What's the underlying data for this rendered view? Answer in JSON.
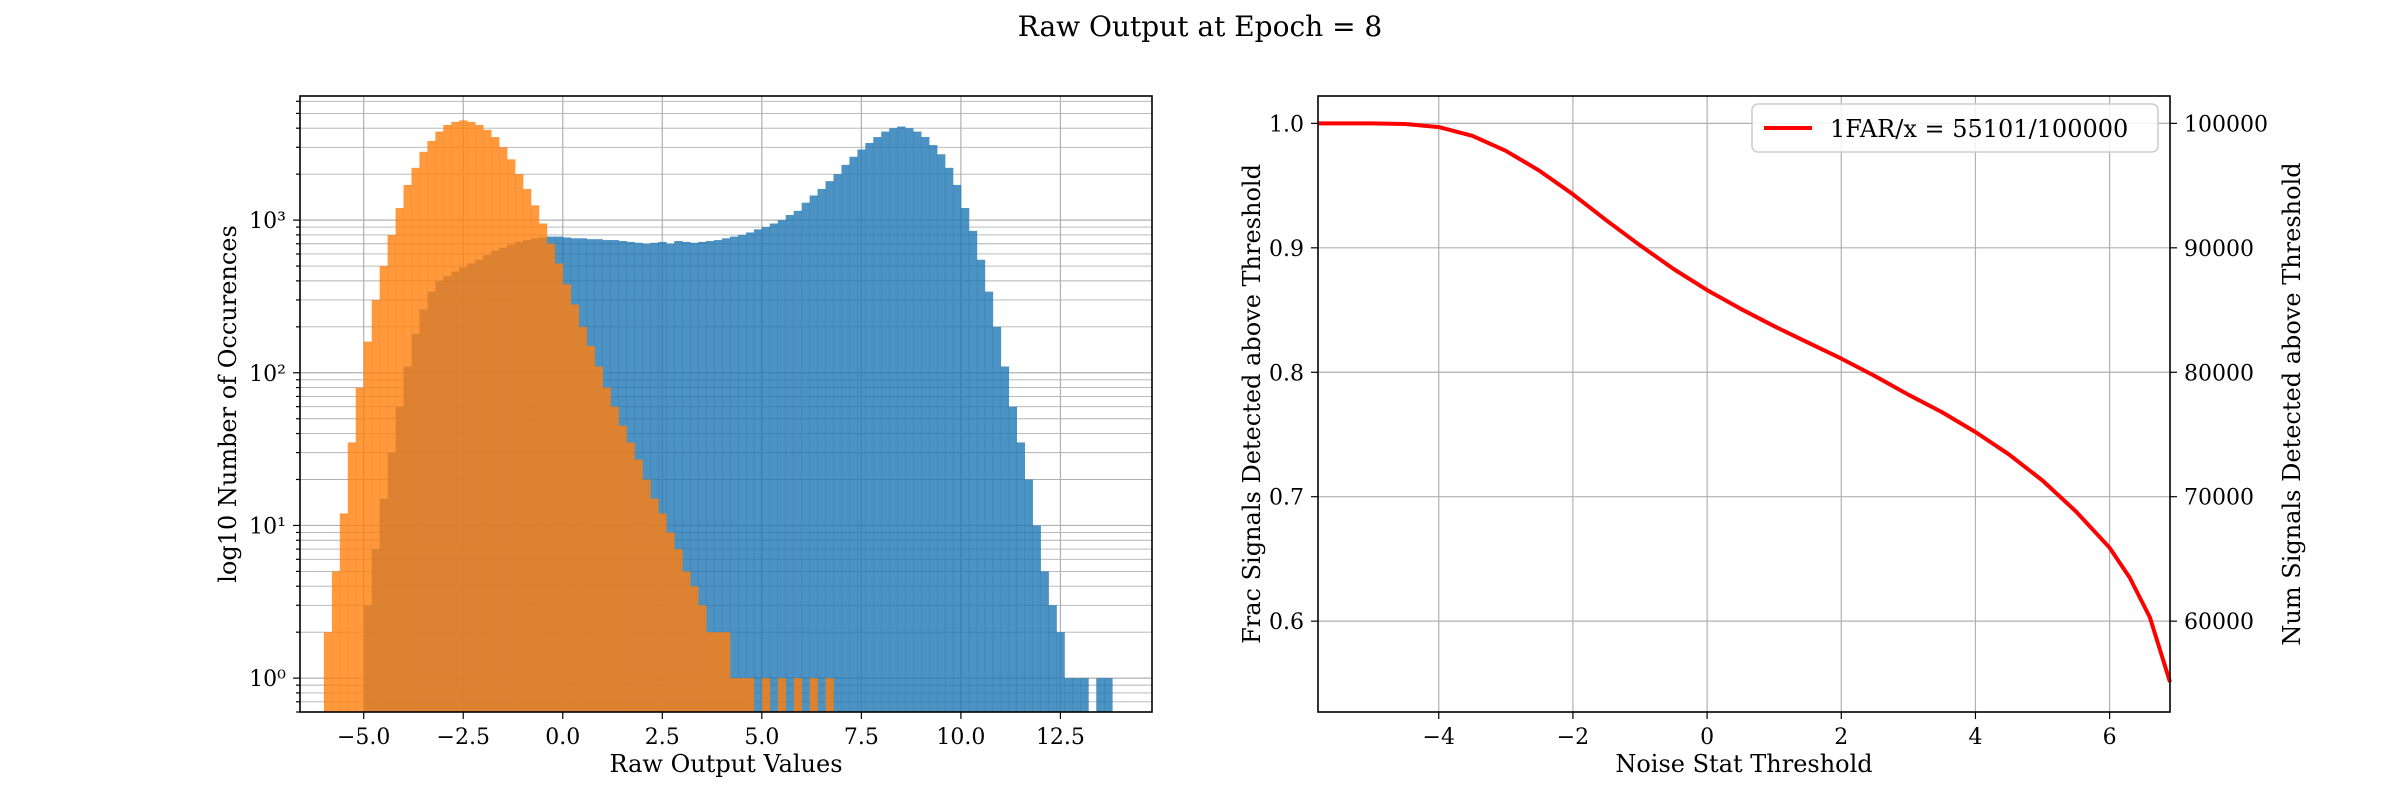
{
  "figure": {
    "suptitle": "Raw Output at Epoch = 8"
  },
  "colors": {
    "blue": "#1f77b4",
    "orange": "#ff7f0e",
    "red": "#ff0000",
    "grid": "#b0b0b0"
  },
  "chart_data": [
    {
      "type": "histogram",
      "title": "",
      "xlabel": "Raw Output Values",
      "ylabel": "log10 Number of Occurences",
      "yscale": "log",
      "xlim": [
        -6.6,
        14.8
      ],
      "ylim": [
        0.6,
        6500
      ],
      "grid": true,
      "bin_width": 0.2,
      "x_ticks": [
        -5.0,
        -2.5,
        0.0,
        2.5,
        5.0,
        7.5,
        10.0,
        12.5
      ],
      "x_tick_labels": [
        "−5.0",
        "−2.5",
        "0.0",
        "2.5",
        "5.0",
        "7.5",
        "10.0",
        "12.5"
      ],
      "y_ticks": [
        1,
        10,
        100,
        1000
      ],
      "y_tick_labels": [
        "10⁰",
        "10¹",
        "10²",
        "10³"
      ],
      "series": [
        {
          "color": "#1f77b4",
          "alpha": 0.8,
          "bins": [
            [
              -5.0,
              3
            ],
            [
              -4.8,
              7
            ],
            [
              -4.6,
              15
            ],
            [
              -4.4,
              30
            ],
            [
              -4.2,
              60
            ],
            [
              -4.0,
              110
            ],
            [
              -3.8,
              180
            ],
            [
              -3.6,
              260
            ],
            [
              -3.4,
              340
            ],
            [
              -3.2,
              400
            ],
            [
              -3.0,
              430
            ],
            [
              -2.8,
              460
            ],
            [
              -2.6,
              490
            ],
            [
              -2.4,
              520
            ],
            [
              -2.2,
              550
            ],
            [
              -2.0,
              590
            ],
            [
              -1.8,
              630
            ],
            [
              -1.6,
              660
            ],
            [
              -1.4,
              690
            ],
            [
              -1.2,
              720
            ],
            [
              -1.0,
              740
            ],
            [
              -0.8,
              760
            ],
            [
              -0.6,
              770
            ],
            [
              -0.4,
              780
            ],
            [
              -0.2,
              780
            ],
            [
              0.0,
              770
            ],
            [
              0.2,
              760
            ],
            [
              0.4,
              760
            ],
            [
              0.6,
              750
            ],
            [
              0.8,
              750
            ],
            [
              1.0,
              740
            ],
            [
              1.2,
              740
            ],
            [
              1.4,
              730
            ],
            [
              1.6,
              720
            ],
            [
              1.8,
              710
            ],
            [
              2.0,
              700
            ],
            [
              2.2,
              710
            ],
            [
              2.4,
              720
            ],
            [
              2.6,
              700
            ],
            [
              2.8,
              730
            ],
            [
              3.0,
              720
            ],
            [
              3.2,
              710
            ],
            [
              3.4,
              720
            ],
            [
              3.6,
              730
            ],
            [
              3.8,
              740
            ],
            [
              4.0,
              760
            ],
            [
              4.2,
              780
            ],
            [
              4.4,
              800
            ],
            [
              4.6,
              830
            ],
            [
              4.8,
              870
            ],
            [
              5.0,
              900
            ],
            [
              5.2,
              950
            ],
            [
              5.4,
              1000
            ],
            [
              5.6,
              1080
            ],
            [
              5.8,
              1150
            ],
            [
              6.0,
              1300
            ],
            [
              6.2,
              1450
            ],
            [
              6.4,
              1600
            ],
            [
              6.6,
              1800
            ],
            [
              6.8,
              2000
            ],
            [
              7.0,
              2300
            ],
            [
              7.2,
              2600
            ],
            [
              7.4,
              2900
            ],
            [
              7.6,
              3200
            ],
            [
              7.8,
              3500
            ],
            [
              8.0,
              3800
            ],
            [
              8.2,
              4000
            ],
            [
              8.4,
              4100
            ],
            [
              8.6,
              4000
            ],
            [
              8.8,
              3800
            ],
            [
              9.0,
              3500
            ],
            [
              9.2,
              3100
            ],
            [
              9.4,
              2700
            ],
            [
              9.6,
              2200
            ],
            [
              9.8,
              1700
            ],
            [
              10.0,
              1200
            ],
            [
              10.2,
              850
            ],
            [
              10.4,
              550
            ],
            [
              10.6,
              340
            ],
            [
              10.8,
              200
            ],
            [
              11.0,
              110
            ],
            [
              11.2,
              60
            ],
            [
              11.4,
              35
            ],
            [
              11.6,
              20
            ],
            [
              11.8,
              10
            ],
            [
              12.0,
              5
            ],
            [
              12.2,
              3
            ],
            [
              12.4,
              2
            ],
            [
              12.6,
              1
            ],
            [
              12.8,
              1
            ],
            [
              13.0,
              1
            ],
            [
              13.4,
              1
            ],
            [
              13.6,
              1
            ]
          ]
        },
        {
          "color": "#ff7f0e",
          "alpha": 0.8,
          "bins": [
            [
              -6.0,
              2
            ],
            [
              -5.8,
              5
            ],
            [
              -5.6,
              12
            ],
            [
              -5.4,
              35
            ],
            [
              -5.2,
              80
            ],
            [
              -5.0,
              160
            ],
            [
              -4.8,
              300
            ],
            [
              -4.6,
              500
            ],
            [
              -4.4,
              800
            ],
            [
              -4.2,
              1200
            ],
            [
              -4.0,
              1700
            ],
            [
              -3.8,
              2200
            ],
            [
              -3.6,
              2800
            ],
            [
              -3.4,
              3300
            ],
            [
              -3.2,
              3800
            ],
            [
              -3.0,
              4200
            ],
            [
              -2.8,
              4400
            ],
            [
              -2.6,
              4500
            ],
            [
              -2.4,
              4400
            ],
            [
              -2.2,
              4200
            ],
            [
              -2.0,
              3900
            ],
            [
              -1.8,
              3500
            ],
            [
              -1.6,
              3000
            ],
            [
              -1.4,
              2500
            ],
            [
              -1.2,
              2000
            ],
            [
              -1.0,
              1600
            ],
            [
              -0.8,
              1250
            ],
            [
              -0.6,
              950
            ],
            [
              -0.4,
              700
            ],
            [
              -0.2,
              520
            ],
            [
              0.0,
              380
            ],
            [
              0.2,
              280
            ],
            [
              0.4,
              200
            ],
            [
              0.6,
              150
            ],
            [
              0.8,
              110
            ],
            [
              1.0,
              80
            ],
            [
              1.2,
              60
            ],
            [
              1.4,
              45
            ],
            [
              1.6,
              35
            ],
            [
              1.8,
              27
            ],
            [
              2.0,
              20
            ],
            [
              2.2,
              15
            ],
            [
              2.4,
              12
            ],
            [
              2.6,
              9
            ],
            [
              2.8,
              7
            ],
            [
              3.0,
              5
            ],
            [
              3.2,
              4
            ],
            [
              3.4,
              3
            ],
            [
              3.6,
              2
            ],
            [
              3.8,
              2
            ],
            [
              4.0,
              2
            ],
            [
              4.2,
              1
            ],
            [
              4.4,
              1
            ],
            [
              4.6,
              1
            ],
            [
              5.0,
              1
            ],
            [
              5.4,
              1
            ],
            [
              5.8,
              1
            ],
            [
              6.2,
              1
            ],
            [
              6.6,
              1
            ]
          ]
        }
      ]
    },
    {
      "type": "line",
      "title": "",
      "xlabel": "Noise Stat Threshold",
      "ylabel": "Frac Signals Detected above Threshold",
      "y2label": "Num Signals Detected above Threshold",
      "xlim": [
        -5.8,
        6.9
      ],
      "ylim": [
        0.527,
        1.022
      ],
      "y2lim": [
        52700,
        102200
      ],
      "grid": true,
      "legend_position": "upper right",
      "x_ticks": [
        -4,
        -2,
        0,
        2,
        4,
        6
      ],
      "x_tick_labels": [
        "−4",
        "−2",
        "0",
        "2",
        "4",
        "6"
      ],
      "y_ticks": [
        0.6,
        0.7,
        0.8,
        0.9,
        1.0
      ],
      "y_tick_labels": [
        "0.6",
        "0.7",
        "0.8",
        "0.9",
        "1.0"
      ],
      "y2_ticks": [
        60000,
        70000,
        80000,
        90000,
        100000
      ],
      "y2_tick_labels": [
        "60000",
        "70000",
        "80000",
        "90000",
        "100000"
      ],
      "series": [
        {
          "name": "1FAR/x = 55101/100000",
          "color": "#ff0000",
          "x": [
            -5.8,
            -5.0,
            -4.5,
            -4.0,
            -3.5,
            -3.0,
            -2.5,
            -2.0,
            -1.5,
            -1.0,
            -0.5,
            0.0,
            0.5,
            1.0,
            1.5,
            2.0,
            2.5,
            3.0,
            3.5,
            4.0,
            4.5,
            5.0,
            5.5,
            6.0,
            6.3,
            6.6,
            6.9
          ],
          "y": [
            1.0,
            1.0,
            0.9995,
            0.997,
            0.99,
            0.978,
            0.962,
            0.943,
            0.922,
            0.902,
            0.883,
            0.866,
            0.851,
            0.837,
            0.824,
            0.811,
            0.797,
            0.782,
            0.768,
            0.752,
            0.734,
            0.713,
            0.688,
            0.659,
            0.635,
            0.603,
            0.551
          ]
        }
      ]
    }
  ]
}
